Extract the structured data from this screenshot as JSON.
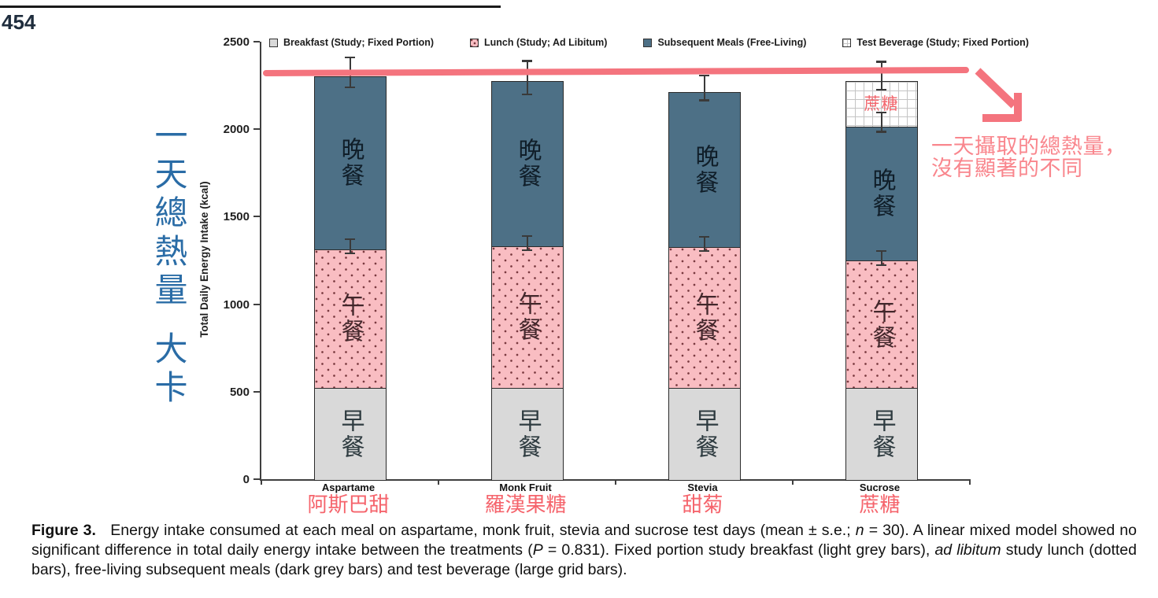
{
  "page": {
    "number": "454"
  },
  "annotations": {
    "left_vertical_line1": "一天總熱量",
    "left_vertical_line2": "大卡",
    "note_line1": "一天攝取的總熱量，",
    "note_line2": "沒有顯著的不同",
    "accent_color": "#f4747e",
    "note_text_color": "#f9868d",
    "left_label_color": "#2a6ca6",
    "category_label_color": "#f5646c"
  },
  "chart_data": {
    "type": "bar",
    "stacked": true,
    "ylabel": "Total Daily Energy Intake (kcal)",
    "ylim": [
      0,
      2500
    ],
    "yticks": [
      0,
      500,
      1000,
      1500,
      2000,
      2500
    ],
    "grid": false,
    "legend_position": "top",
    "categories": [
      {
        "name": "Aspartame",
        "cjk": "阿斯巴甜"
      },
      {
        "name": "Monk Fruit",
        "cjk": "羅漢果糖"
      },
      {
        "name": "Stevia",
        "cjk": "甜菊"
      },
      {
        "name": "Sucrose",
        "cjk": "蔗糖"
      }
    ],
    "series": [
      {
        "key": "breakfast",
        "name": "Breakfast (Study; Fixed Portion)",
        "fill": "#d9d9d9",
        "pattern": "solid",
        "values": [
          530,
          530,
          530,
          530
        ]
      },
      {
        "key": "lunch",
        "name": "Lunch (Study; Ad Libitum)",
        "fill": "#f9bdc2",
        "pattern": "dots",
        "values": [
          800,
          820,
          815,
          735
        ]
      },
      {
        "key": "subsequent",
        "name": "Subsequent Meals (Free-Living)",
        "fill": "#4d7086",
        "pattern": "solid",
        "values": [
          995,
          945,
          890,
          775
        ]
      },
      {
        "key": "beverage",
        "name": "Test Beverage (Study; Fixed Portion)",
        "fill": "#ffffff",
        "pattern": "large-grid",
        "values": [
          0,
          0,
          0,
          265
        ]
      }
    ],
    "totals": [
      2325,
      2295,
      2235,
      2305
    ],
    "segment_labels": {
      "breakfast": "早餐",
      "lunch": "午餐",
      "subsequent": "晚餐",
      "beverage": "蔗糖"
    },
    "error_bars": [
      {
        "bar": 0,
        "at": 1330,
        "se": 45
      },
      {
        "bar": 0,
        "at": 2325,
        "se": 90
      },
      {
        "bar": 1,
        "at": 1350,
        "se": 45
      },
      {
        "bar": 1,
        "at": 2295,
        "se": 100
      },
      {
        "bar": 2,
        "at": 1345,
        "se": 45
      },
      {
        "bar": 2,
        "at": 2235,
        "se": 75
      },
      {
        "bar": 3,
        "at": 1265,
        "se": 45
      },
      {
        "bar": 3,
        "at": 2040,
        "se": 60
      },
      {
        "bar": 3,
        "at": 2305,
        "se": 85
      }
    ]
  },
  "caption": {
    "segments": [
      {
        "t": "Figure 3.",
        "b": true
      },
      {
        "t": "   Energy intake consumed at each meal on aspartame, monk fruit, stevia and sucrose test days (mean ± s.e.; "
      },
      {
        "t": "n",
        "i": true
      },
      {
        "t": " = 30). A linear mixed model showed no significant difference in total daily energy intake between the treatments ("
      },
      {
        "t": "P",
        "i": true
      },
      {
        "t": " = 0.831). Fixed portion study breakfast (light grey bars), "
      },
      {
        "t": "ad libitum",
        "i": true
      },
      {
        "t": " study lunch (dotted bars), free-living subsequent meals (dark grey bars) and test beverage (large grid bars)."
      }
    ]
  }
}
